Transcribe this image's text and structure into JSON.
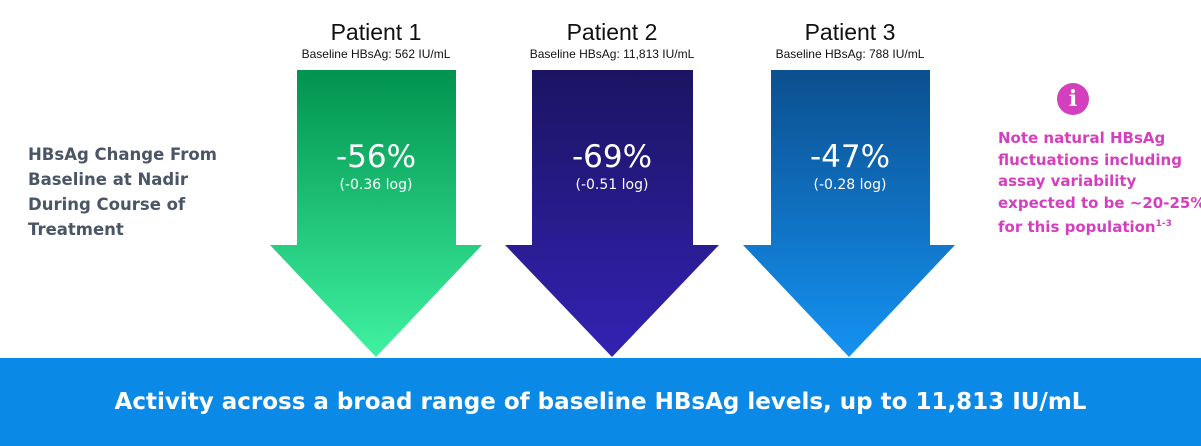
{
  "patients": [
    {
      "title": "Patient 1",
      "baseline": "Baseline HBsAg: 562 IU/mL",
      "change": "-56%",
      "log": "(-0.36 log)",
      "colors": [
        "#00934f",
        "#3ff2a0"
      ]
    },
    {
      "title": "Patient 2",
      "baseline": "Baseline HBsAg: 11,813 IU/mL",
      "change": "-69%",
      "log": "(-0.51 log)",
      "colors": [
        "#1b1462",
        "#3322b3"
      ]
    },
    {
      "title": "Patient 3",
      "baseline": "Baseline HBsAg: 788 IU/mL",
      "change": "-47%",
      "log": "(-0.28 log)",
      "colors": [
        "#0b4f8f",
        "#1592f2"
      ]
    }
  ],
  "row_label": "HBsAg Change From Baseline at Nadir During Course of Treatment",
  "note": {
    "icon": "info-icon",
    "text": "Note natural HBsAg fluctuations including assay variability expected to be ~20-25% for this population",
    "superscript": "1-3"
  },
  "banner": "Activity across a broad range of baseline HBsAg levels, up to 11,813 IU/mL"
}
